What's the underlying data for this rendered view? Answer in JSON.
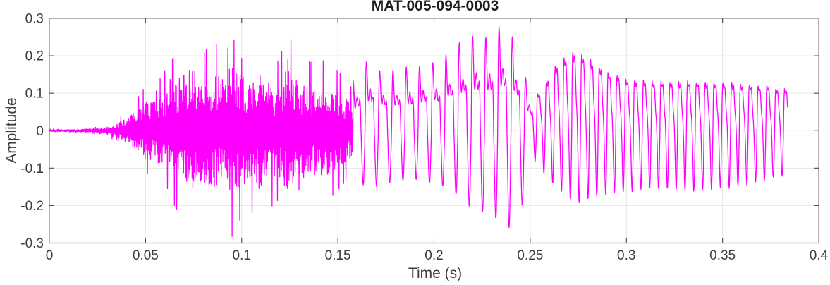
{
  "chart_data": {
    "type": "line",
    "subtype": "audio-waveform",
    "title": "MAT-005-094-0003",
    "xlabel": "Time (s)",
    "ylabel": "Amplitude",
    "xlim": [
      0,
      0.4
    ],
    "ylim": [
      -0.3,
      0.3
    ],
    "xticks": [
      0,
      0.05,
      0.1,
      0.15,
      0.2,
      0.25,
      0.3,
      0.35,
      0.4
    ],
    "xtick_labels": [
      "0",
      "0.05",
      "0.1",
      "0.15",
      "0.2",
      "0.25",
      "0.3",
      "0.35",
      "0.4"
    ],
    "yticks": [
      -0.3,
      -0.2,
      -0.1,
      0,
      0.1,
      0.2,
      0.3
    ],
    "ytick_labels": [
      "-0.3",
      "-0.2",
      "-0.1",
      "0",
      "0.1",
      "0.2",
      "0.3"
    ],
    "grid": true,
    "box": true,
    "legend": null,
    "line_color": "#FF00FF",
    "colors": {
      "axis_box": "#8a8a8a",
      "tick_mark": "#4a4a4a",
      "grid_line": "#e6e6e6",
      "tick_label": "#3d3d3d",
      "axis_label": "#3d3d3d",
      "title": "#1c1c1c",
      "background": "#ffffff"
    },
    "waveform": {
      "t_start": 0.0,
      "t_end": 0.3839,
      "sample_dt": 0.0002,
      "peak_amplitude": 0.295,
      "min_amplitude": -0.265,
      "segments": [
        {
          "kind": "noise_burst",
          "t0": 0.0,
          "t1": 0.158,
          "spike_envelope": [
            [
              0.0,
              0.004
            ],
            [
              0.012,
              0.004
            ],
            [
              0.02,
              0.007
            ],
            [
              0.028,
              0.013
            ],
            [
              0.034,
              0.025
            ],
            [
              0.04,
              0.05
            ],
            [
              0.045,
              0.08
            ],
            [
              0.05,
              0.12
            ],
            [
              0.055,
              0.12
            ],
            [
              0.06,
              0.16
            ],
            [
              0.065,
              0.2
            ],
            [
              0.07,
              0.24
            ],
            [
              0.075,
              0.255
            ],
            [
              0.08,
              0.21
            ],
            [
              0.085,
              0.235
            ],
            [
              0.09,
              0.22
            ],
            [
              0.094,
              0.295
            ],
            [
              0.098,
              0.245
            ],
            [
              0.104,
              0.21
            ],
            [
              0.109,
              0.245
            ],
            [
              0.114,
              0.21
            ],
            [
              0.119,
              0.185
            ],
            [
              0.124,
              0.26
            ],
            [
              0.129,
              0.21
            ],
            [
              0.134,
              0.185
            ],
            [
              0.139,
              0.18
            ],
            [
              0.144,
              0.19
            ],
            [
              0.149,
              0.165
            ],
            [
              0.154,
              0.135
            ],
            [
              0.158,
              0.11
            ]
          ],
          "core_band_fraction": 0.48,
          "spike_probability": 0.08
        },
        {
          "kind": "voiced_periodic",
          "t0": 0.158,
          "t1": 0.252,
          "freq_hz": 145,
          "harmonics": [
            [
              1.0,
              0.0
            ],
            [
              0.75,
              1.3
            ],
            [
              0.35,
              2.4
            ]
          ],
          "pos_envelope": [
            [
              0.158,
              0.13
            ],
            [
              0.163,
              0.18
            ],
            [
              0.167,
              0.19
            ],
            [
              0.173,
              0.155
            ],
            [
              0.179,
              0.16
            ],
            [
              0.186,
              0.17
            ],
            [
              0.193,
              0.175
            ],
            [
              0.2,
              0.185
            ],
            [
              0.206,
              0.2
            ],
            [
              0.212,
              0.23
            ],
            [
              0.218,
              0.25
            ],
            [
              0.223,
              0.26
            ],
            [
              0.228,
              0.25
            ],
            [
              0.232,
              0.27
            ],
            [
              0.236,
              0.285
            ],
            [
              0.24,
              0.26
            ],
            [
              0.244,
              0.215
            ],
            [
              0.248,
              0.135
            ],
            [
              0.252,
              0.085
            ]
          ],
          "neg_envelope": [
            [
              0.158,
              0.115
            ],
            [
              0.164,
              0.15
            ],
            [
              0.17,
              0.145
            ],
            [
              0.18,
              0.135
            ],
            [
              0.19,
              0.13
            ],
            [
              0.2,
              0.14
            ],
            [
              0.206,
              0.15
            ],
            [
              0.212,
              0.175
            ],
            [
              0.218,
              0.2
            ],
            [
              0.224,
              0.215
            ],
            [
              0.23,
              0.23
            ],
            [
              0.236,
              0.25
            ],
            [
              0.24,
              0.265
            ],
            [
              0.244,
              0.235
            ],
            [
              0.248,
              0.165
            ],
            [
              0.252,
              0.095
            ]
          ]
        },
        {
          "kind": "voiced_periodic",
          "t0": 0.252,
          "t1": 0.3839,
          "freq_hz": 218,
          "harmonics": [
            [
              1.0,
              0.0
            ],
            [
              0.45,
              1.1
            ],
            [
              0.2,
              2.2
            ]
          ],
          "pos_envelope": [
            [
              0.252,
              0.085
            ],
            [
              0.257,
              0.12
            ],
            [
              0.263,
              0.17
            ],
            [
              0.269,
              0.2
            ],
            [
              0.273,
              0.21
            ],
            [
              0.279,
              0.2
            ],
            [
              0.285,
              0.175
            ],
            [
              0.292,
              0.15
            ],
            [
              0.3,
              0.14
            ],
            [
              0.31,
              0.13
            ],
            [
              0.325,
              0.13
            ],
            [
              0.345,
              0.13
            ],
            [
              0.36,
              0.125
            ],
            [
              0.372,
              0.12
            ],
            [
              0.3839,
              0.11
            ]
          ],
          "neg_envelope": [
            [
              0.252,
              0.075
            ],
            [
              0.258,
              0.12
            ],
            [
              0.266,
              0.165
            ],
            [
              0.273,
              0.195
            ],
            [
              0.28,
              0.185
            ],
            [
              0.29,
              0.17
            ],
            [
              0.3,
              0.16
            ],
            [
              0.315,
              0.155
            ],
            [
              0.335,
              0.16
            ],
            [
              0.355,
              0.15
            ],
            [
              0.37,
              0.135
            ],
            [
              0.3839,
              0.12
            ]
          ]
        }
      ]
    }
  }
}
